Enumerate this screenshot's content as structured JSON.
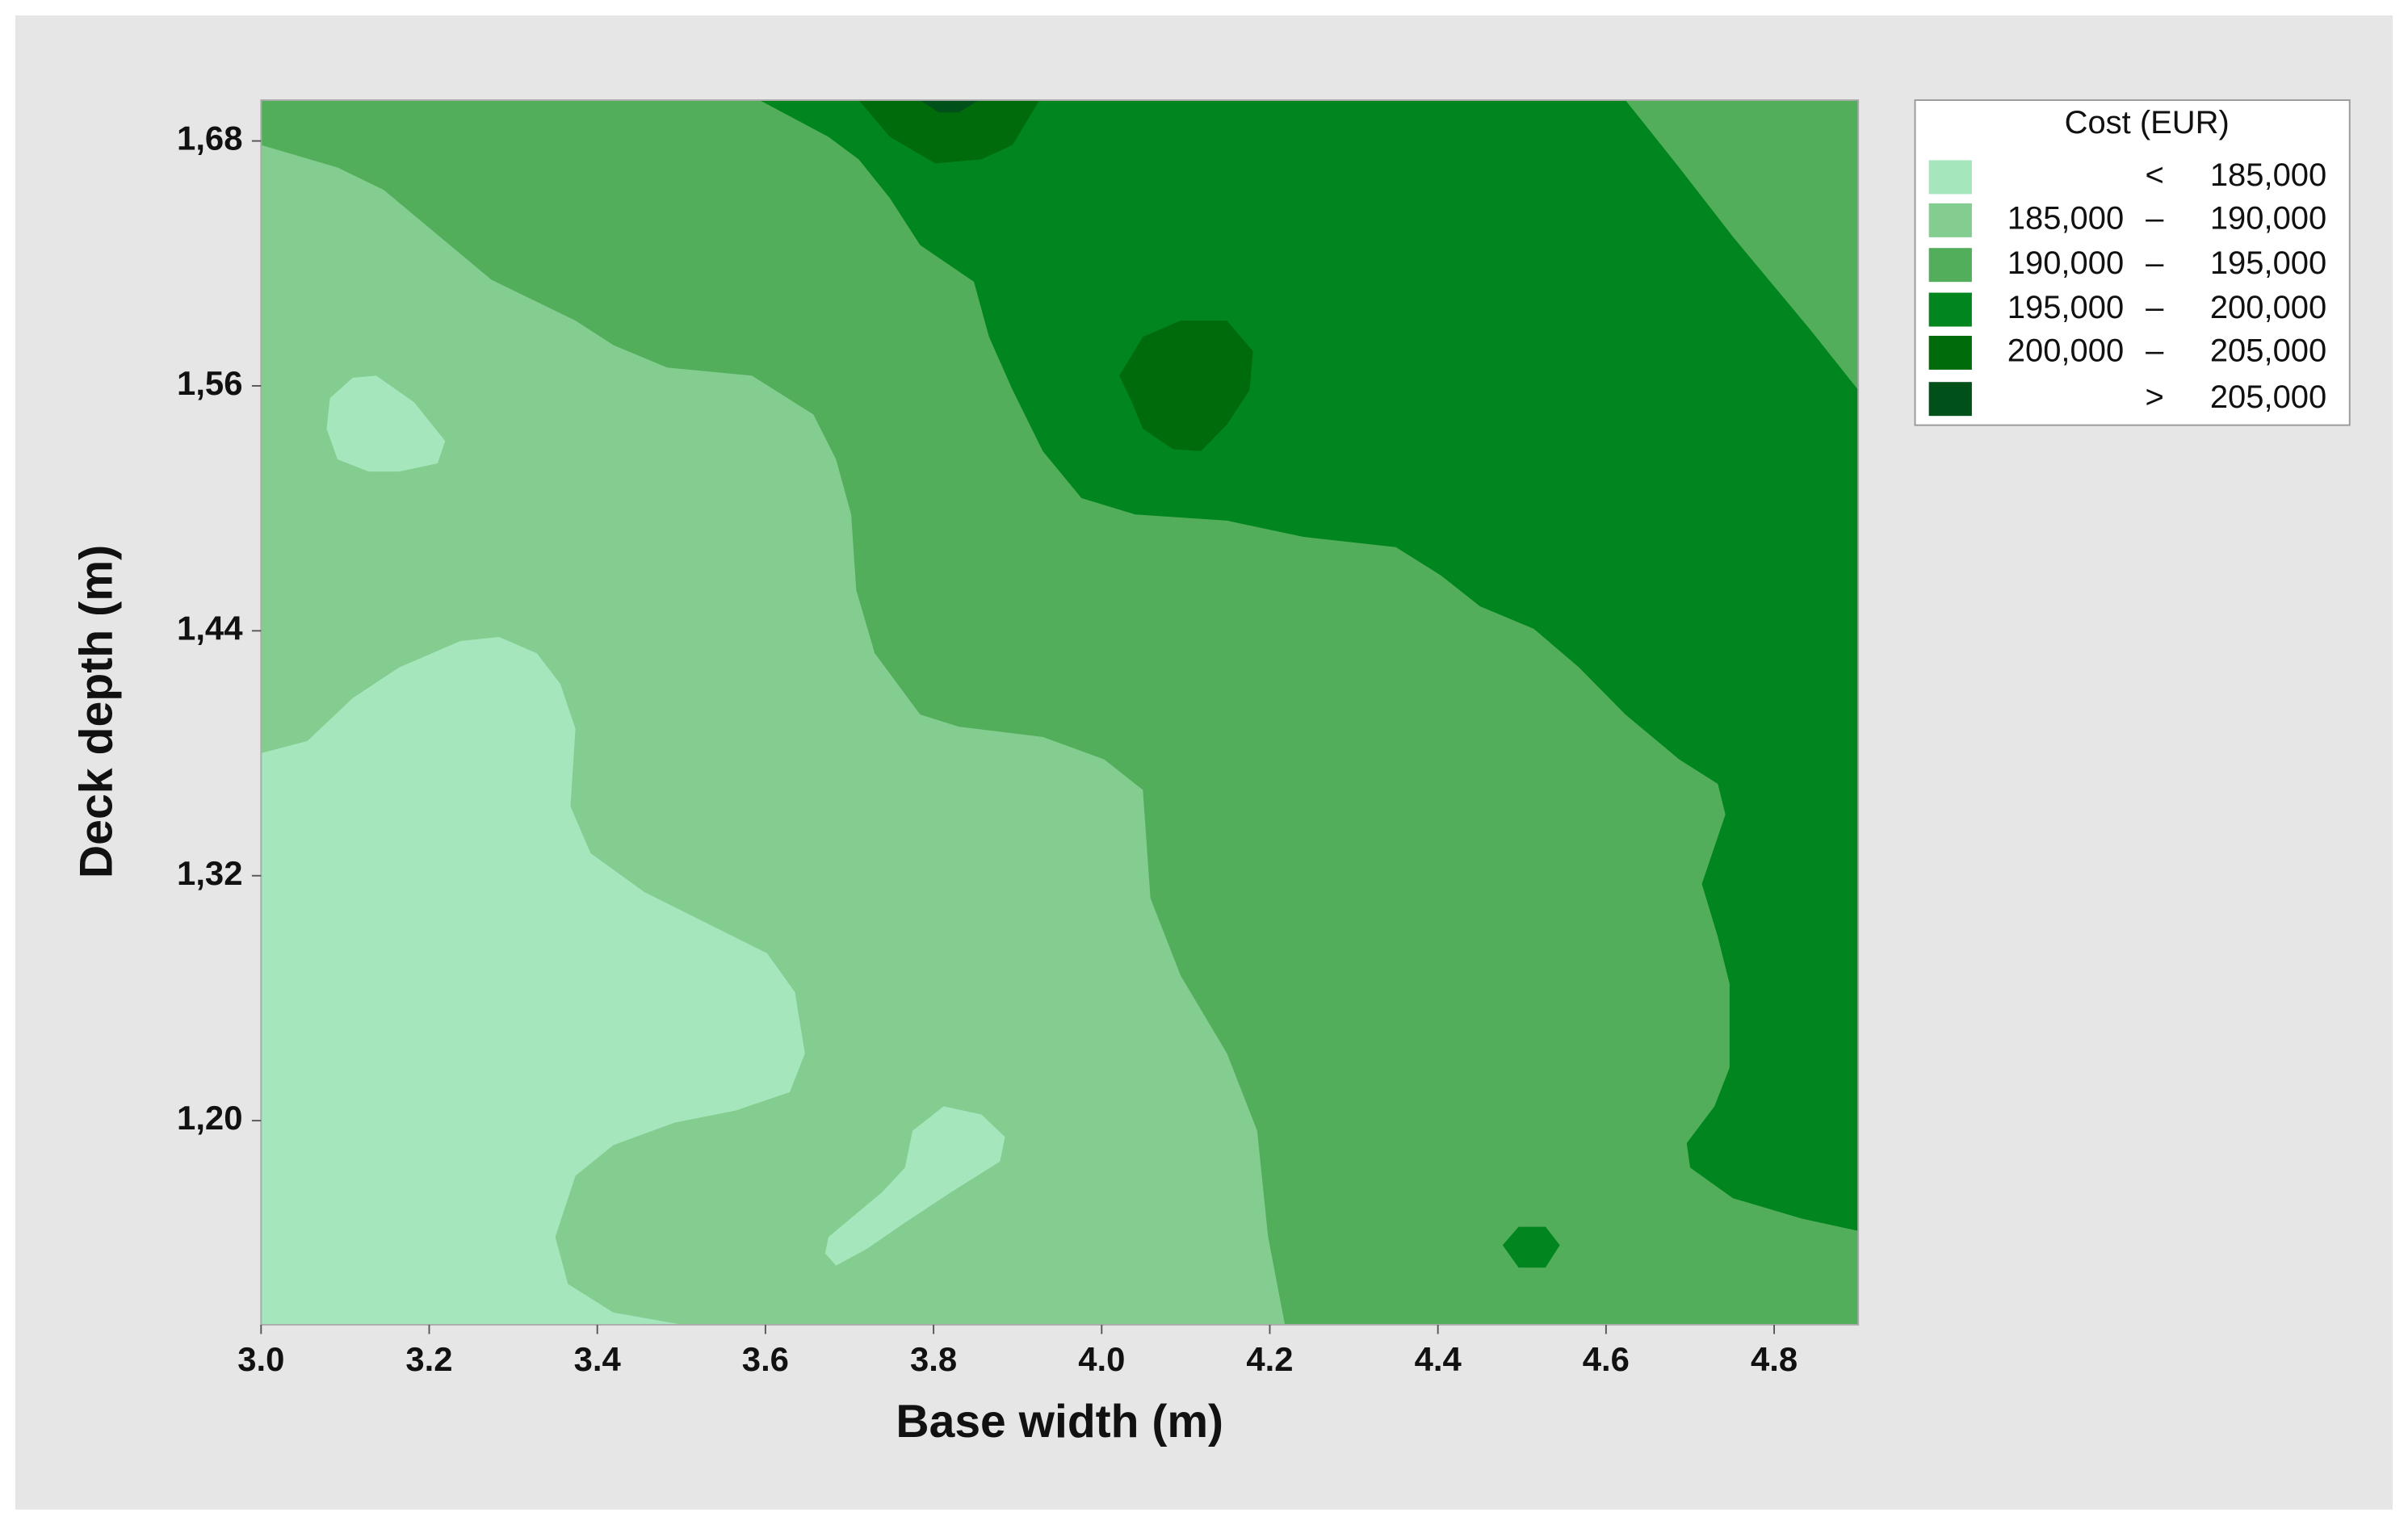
{
  "chart_data": {
    "type": "contour",
    "x_label": "Base width (m)",
    "y_label": "Deck depth (m)",
    "xlim": [
      3.0,
      4.9
    ],
    "ylim": [
      1.1,
      1.7
    ],
    "xticks": [
      {
        "value": 3.0,
        "label": "3.0"
      },
      3.2,
      3.4,
      3.6,
      3.8,
      {
        "value": 4.0,
        "label": "4.0"
      },
      4.2,
      4.4,
      4.6,
      4.8
    ],
    "yticks": [
      {
        "value": 1.2,
        "label": "1,20"
      },
      {
        "value": 1.32,
        "label": "1,32"
      },
      {
        "value": 1.44,
        "label": "1,44"
      },
      {
        "value": 1.56,
        "label": "1,56"
      },
      {
        "value": 1.68,
        "label": "1,68"
      }
    ],
    "legend": "right",
    "legend_title": "Cost (EUR)",
    "legend_symbols": {
      "below": "<",
      "between": "–",
      "above": ">"
    },
    "breaks": [
      {
        "value": 185000,
        "label": "185,000"
      },
      {
        "value": 190000,
        "label": "190,000"
      },
      {
        "value": 195000,
        "label": "195,000"
      },
      {
        "value": 200000,
        "label": "200,000"
      },
      {
        "value": 205000,
        "label": "205,000"
      }
    ],
    "colors": [
      "#a6e6bd",
      "#82cd8f",
      "#52ae5a",
      "#00851f",
      "#006b0b",
      "#00501a"
    ],
    "regions": [
      {
        "level": 1,
        "x": [
          3.0,
          4.9,
          4.9,
          3.0
        ],
        "y": [
          1.1,
          1.1,
          1.7,
          1.7
        ]
      },
      {
        "level": 0,
        "x": [
          3.0,
          3.055,
          3.109,
          3.164,
          3.237,
          3.283,
          3.328,
          3.356,
          3.374,
          3.368,
          3.392,
          3.456,
          3.529,
          3.602,
          3.635,
          3.647,
          3.629,
          3.565,
          3.492,
          3.419,
          3.374,
          3.35,
          3.365,
          3.419,
          3.502,
          3.0
        ],
        "y": [
          1.38,
          1.386,
          1.407,
          1.422,
          1.435,
          1.437,
          1.429,
          1.414,
          1.392,
          1.354,
          1.331,
          1.312,
          1.297,
          1.282,
          1.263,
          1.233,
          1.214,
          1.205,
          1.199,
          1.188,
          1.173,
          1.143,
          1.12,
          1.106,
          1.1,
          1.1
        ]
      },
      {
        "level": 0,
        "x": [
          3.082,
          3.109,
          3.137,
          3.182,
          3.219,
          3.21,
          3.164,
          3.128,
          3.091,
          3.078
        ],
        "y": [
          1.554,
          1.564,
          1.565,
          1.552,
          1.533,
          1.522,
          1.518,
          1.518,
          1.524,
          1.539
        ]
      },
      {
        "level": 0,
        "x": [
          3.675,
          3.739,
          3.766,
          3.775,
          3.812,
          3.857,
          3.885,
          3.879,
          3.821,
          3.766,
          3.72,
          3.684,
          3.671
        ],
        "y": [
          1.143,
          1.165,
          1.177,
          1.195,
          1.207,
          1.203,
          1.192,
          1.18,
          1.165,
          1.15,
          1.137,
          1.129,
          1.135
        ]
      },
      {
        "level": 2,
        "x": [
          3.0,
          3.091,
          3.146,
          3.274,
          3.374,
          3.419,
          3.483,
          3.584,
          3.657,
          3.684,
          3.702,
          3.708,
          3.73,
          3.784,
          3.83,
          3.93,
          4.003,
          4.049,
          4.058,
          4.094,
          4.149,
          4.185,
          4.198,
          4.218,
          4.9,
          4.9,
          3.0
        ],
        "y": [
          1.678,
          1.667,
          1.656,
          1.612,
          1.592,
          1.58,
          1.569,
          1.565,
          1.546,
          1.524,
          1.497,
          1.46,
          1.429,
          1.399,
          1.393,
          1.388,
          1.377,
          1.362,
          1.309,
          1.271,
          1.233,
          1.195,
          1.143,
          1.1,
          1.1,
          1.7,
          1.7
        ]
      },
      {
        "level": 3,
        "x": [
          3.593,
          3.675,
          3.711,
          3.748,
          3.784,
          3.848,
          3.866,
          3.894,
          3.93,
          3.976,
          4.04,
          4.149,
          4.24,
          4.35,
          4.404,
          4.45,
          4.514,
          4.568,
          4.623,
          4.687,
          4.733,
          4.742,
          4.714,
          4.733,
          4.747,
          4.747,
          4.729,
          4.696,
          4.7,
          4.751,
          4.833,
          4.9,
          4.9,
          4.842,
          4.751,
          4.687,
          4.623
        ],
        "y": [
          1.7,
          1.682,
          1.671,
          1.652,
          1.629,
          1.611,
          1.584,
          1.558,
          1.528,
          1.505,
          1.497,
          1.494,
          1.486,
          1.481,
          1.467,
          1.452,
          1.441,
          1.422,
          1.399,
          1.377,
          1.365,
          1.35,
          1.316,
          1.29,
          1.267,
          1.226,
          1.207,
          1.189,
          1.177,
          1.162,
          1.152,
          1.146,
          1.558,
          1.588,
          1.633,
          1.667,
          1.7
        ]
      },
      {
        "level": 3,
        "x": [
          4.477,
          4.496,
          4.528,
          4.545,
          4.528,
          4.496
        ],
        "y": [
          1.139,
          1.148,
          1.148,
          1.139,
          1.128,
          1.128
        ]
      },
      {
        "level": 4,
        "x": [
          3.711,
          3.748,
          3.802,
          3.857,
          3.894,
          3.926
        ],
        "y": [
          1.7,
          1.682,
          1.669,
          1.671,
          1.678,
          1.7
        ]
      },
      {
        "level": 4,
        "x": [
          4.021,
          4.049,
          4.094,
          4.149,
          4.18,
          4.176,
          4.149,
          4.118,
          4.085,
          4.049,
          4.036
        ],
        "y": [
          1.565,
          1.584,
          1.592,
          1.592,
          1.577,
          1.558,
          1.541,
          1.528,
          1.529,
          1.539,
          1.552
        ]
      },
      {
        "level": 5,
        "x": [
          3.784,
          3.806,
          3.83,
          3.854
        ],
        "y": [
          1.7,
          1.694,
          1.694,
          1.7
        ]
      }
    ]
  }
}
